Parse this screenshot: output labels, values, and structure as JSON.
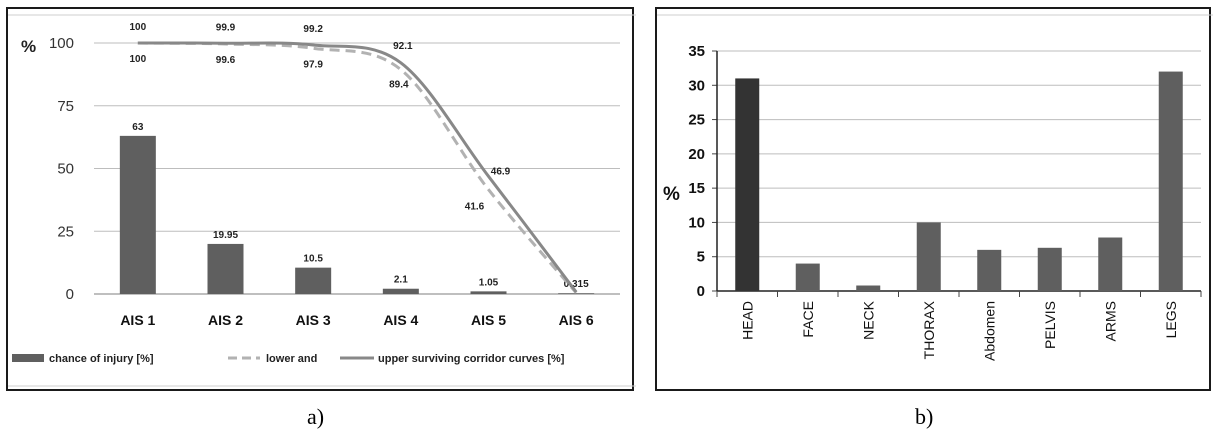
{
  "captions": {
    "a": "a)",
    "b": "b)"
  },
  "colors": {
    "bar": "#5f5f5f",
    "bar_dark": "#333333",
    "curve": "#888888",
    "lower_curve": "#b2b2b2",
    "grid": "#bdbdbd",
    "axis": "#7f7f7f"
  },
  "chart_data": [
    {
      "type": "bar",
      "ylabel": "%",
      "ylim": [
        0,
        100
      ],
      "yticks": [
        0,
        25,
        50,
        75,
        100
      ],
      "categories": [
        "AIS 1",
        "AIS 2",
        "AIS 3",
        "AIS 4",
        "AIS 5",
        "AIS 6"
      ],
      "series": [
        {
          "name": "chance of injury [%]",
          "values": [
            63,
            19.95,
            10.5,
            2.1,
            1.05,
            0.315
          ],
          "labels": [
            "63",
            "19.95",
            "10.5",
            "2.1",
            "1.05",
            "0.315"
          ]
        }
      ],
      "lines": [
        {
          "name": "lower and",
          "style": "dashed",
          "points": [
            [
              1,
              100
            ],
            [
              2,
              99.6
            ],
            [
              3,
              97.9
            ],
            [
              4,
              89.4
            ],
            [
              5,
              41.6
            ],
            [
              6,
              0.5
            ]
          ],
          "labels": [
            "100",
            "99.6",
            "97.9",
            "89.4",
            "41.6",
            ""
          ]
        },
        {
          "name": "upper surviving corridor curves [%]",
          "style": "solid",
          "points": [
            [
              1,
              100
            ],
            [
              2,
              99.9
            ],
            [
              3,
              99.2
            ],
            [
              4,
              92.1
            ],
            [
              5,
              46.9
            ],
            [
              6,
              0.8
            ]
          ],
          "labels": [
            "100",
            "99.9",
            "99.2",
            "92.1",
            "46.9",
            ""
          ]
        }
      ],
      "legend": "bottom",
      "grid": true
    },
    {
      "type": "bar",
      "ylabel": "%",
      "ylim": [
        0,
        35
      ],
      "yticks": [
        0,
        5,
        10,
        15,
        20,
        25,
        30,
        35
      ],
      "categories": [
        "HEAD",
        "FACE",
        "NECK",
        "THORAX",
        "Abdomen",
        "PELVIS",
        "ARMS",
        "LEGS"
      ],
      "values": [
        31,
        4,
        0.8,
        10,
        6,
        6.3,
        7.8,
        32
      ],
      "highlight_index": 0,
      "grid": true
    }
  ]
}
